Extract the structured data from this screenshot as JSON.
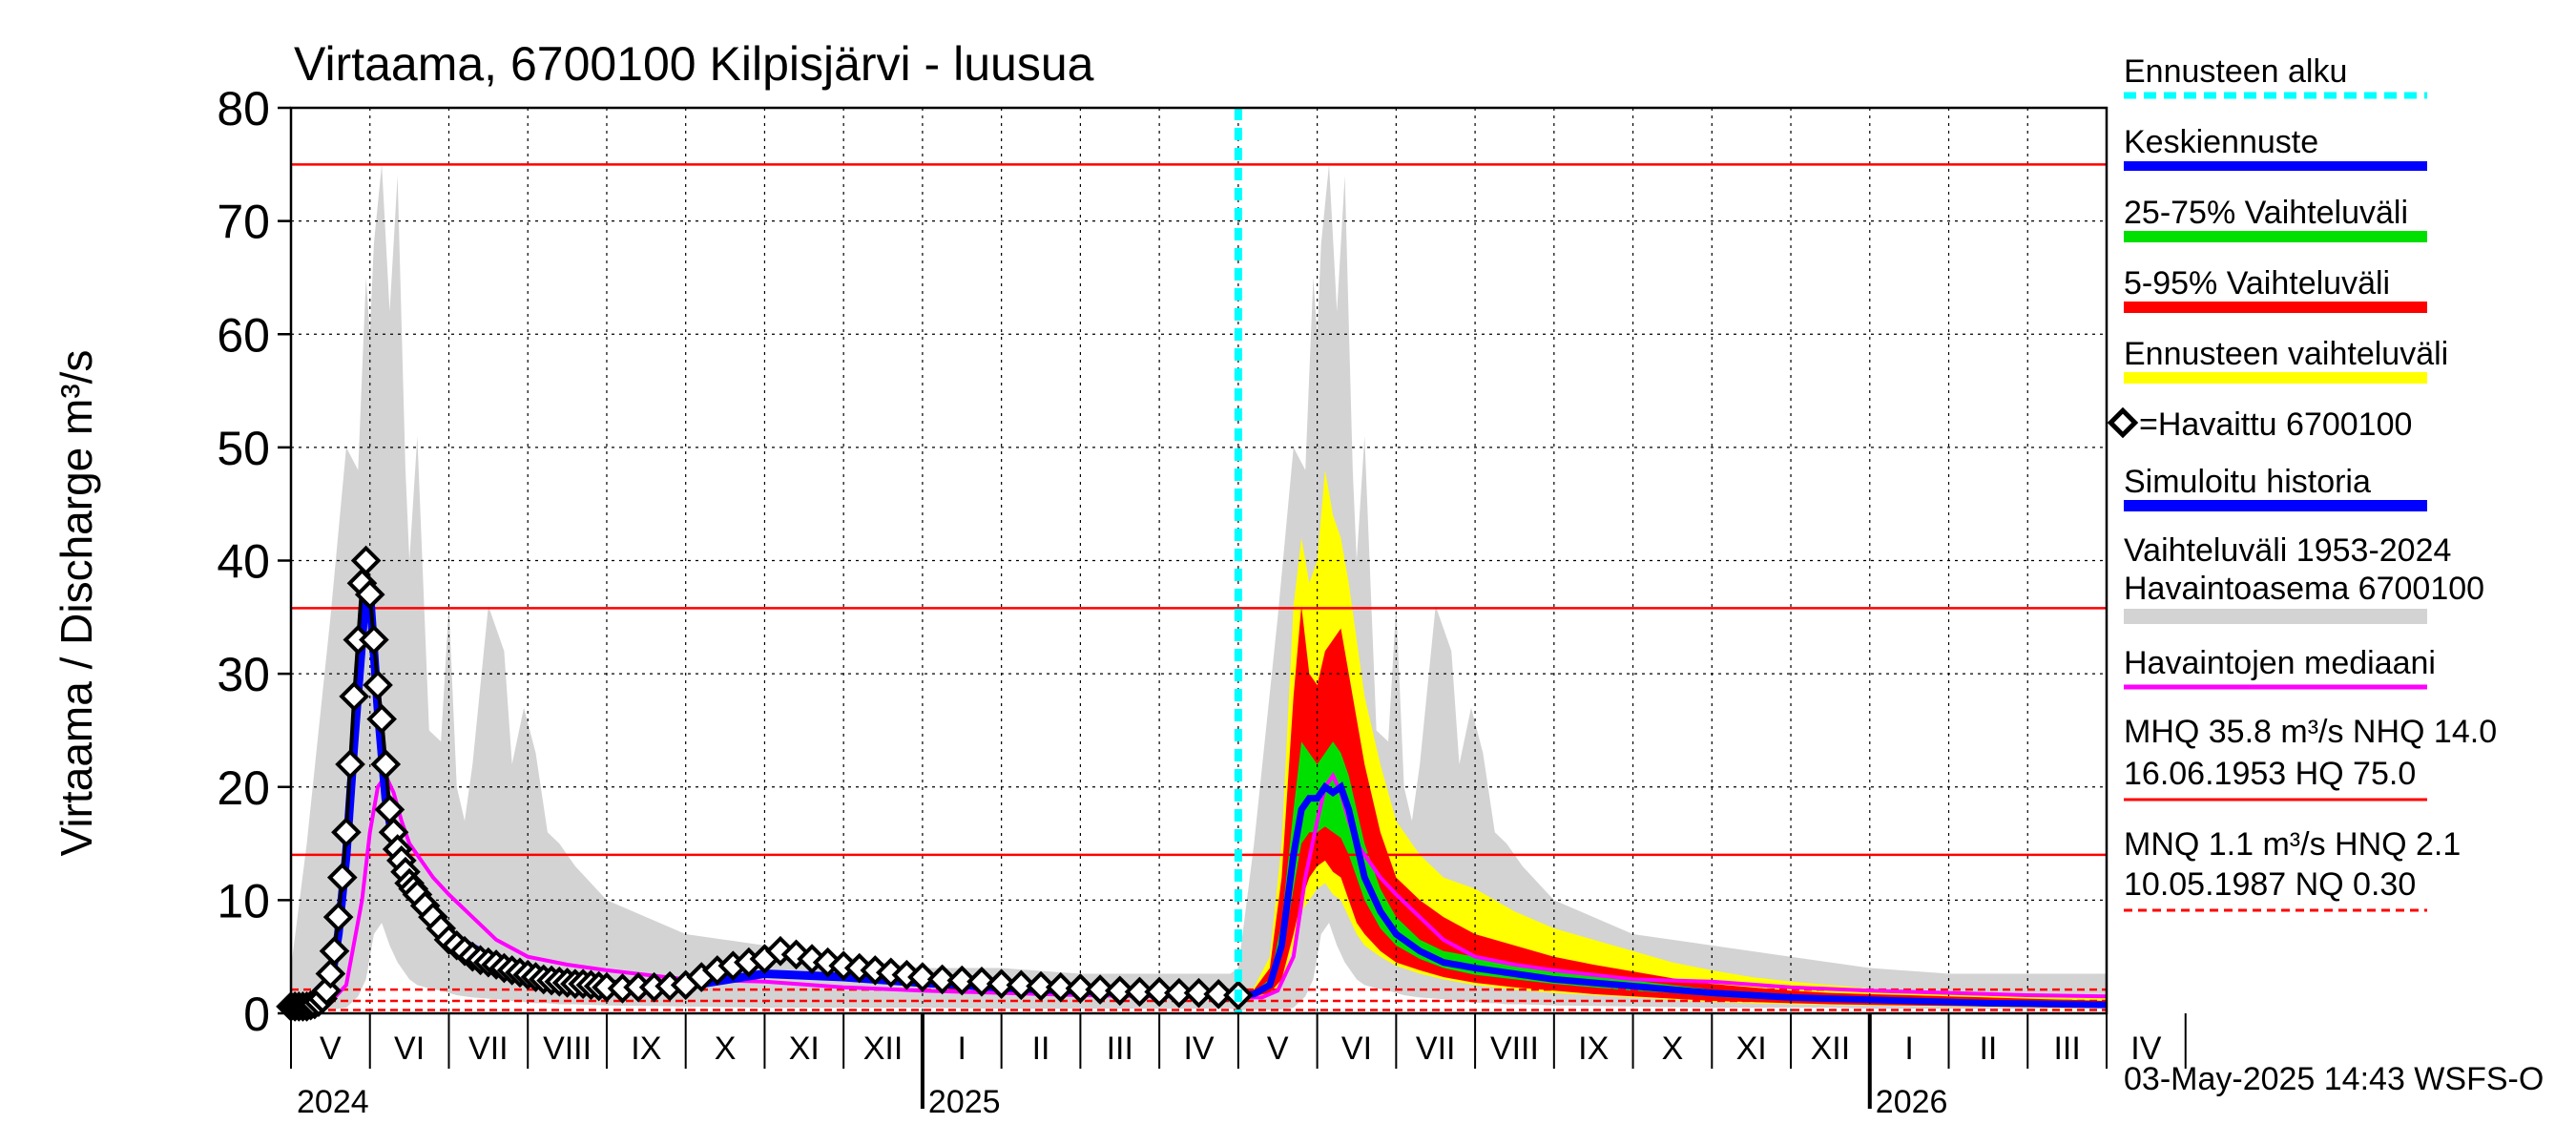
{
  "chart_data": {
    "type": "line",
    "title": "Virtaama, 6700100 Kilpisjärvi - luusua",
    "ylabel": "Virtaama / Discharge     m³/s",
    "ylim": [
      0,
      80
    ],
    "yticks": [
      "0",
      "10",
      "20",
      "30",
      "40",
      "50",
      "60",
      "70",
      "80"
    ],
    "xlim": [
      0,
      23
    ],
    "months": [
      "V",
      "VI",
      "VII",
      "VIII",
      "IX",
      "X",
      "XI",
      "XII",
      "I",
      "II",
      "III",
      "IV",
      "V",
      "VI",
      "VII",
      "VIII",
      "IX",
      "X",
      "XI",
      "XII",
      "I",
      "II",
      "III",
      "IV"
    ],
    "years": [
      {
        "label": "2024",
        "x": 0
      },
      {
        "label": "2025",
        "x": 8
      },
      {
        "label": "2026",
        "x": 20
      }
    ],
    "year_boundaries": [
      8,
      20
    ],
    "forecast_start": 12,
    "timestamp": "03-May-2025 14:43 WSFS-O",
    "reference_lines": [
      {
        "name": "HQ",
        "value": 75.0,
        "style": "solid"
      },
      {
        "name": "MHQ",
        "value": 35.8,
        "style": "solid"
      },
      {
        "name": "NHQ",
        "value": 14.0,
        "style": "solid"
      },
      {
        "name": "HNQ",
        "value": 2.1,
        "style": "dashed"
      },
      {
        "name": "MNQ",
        "value": 1.1,
        "style": "dashed"
      },
      {
        "name": "NQ",
        "value": 0.3,
        "style": "dashed"
      }
    ],
    "history_range": {
      "x": [
        0,
        0.2,
        0.5,
        0.7,
        0.85,
        0.95,
        1.0,
        1.05,
        1.15,
        1.25,
        1.35,
        1.45,
        1.5,
        1.6,
        1.75,
        1.9,
        2.0,
        2.1,
        2.2,
        2.3,
        2.5,
        2.7,
        2.8,
        2.95,
        3.1,
        3.25,
        3.4,
        3.6,
        4.0,
        5.0,
        6.0,
        7.0,
        8.0,
        9.0,
        10.0,
        11.0,
        11.9,
        12.0,
        12.2,
        12.5,
        12.7,
        12.85,
        12.95,
        13.0,
        13.05,
        13.15,
        13.25,
        13.35,
        13.45,
        13.5,
        13.6,
        13.75,
        13.9,
        14.0,
        14.1,
        14.2,
        14.3,
        14.5,
        14.7,
        14.8,
        14.95,
        15.1,
        15.25,
        15.4,
        15.6,
        16.0,
        17.0,
        18.0,
        19.0,
        19.5,
        20.0,
        21.0,
        22.0,
        23.0
      ],
      "max": [
        4,
        15,
        35,
        50,
        48,
        65,
        60,
        68,
        75,
        62,
        74,
        48,
        40,
        51,
        25,
        24,
        36,
        20,
        17,
        22,
        36,
        32,
        22,
        27,
        23,
        16,
        15,
        13,
        10,
        7,
        6,
        5,
        4,
        4,
        3.5,
        3.5,
        3.5,
        4,
        15,
        35,
        50,
        48,
        65,
        60,
        68,
        75,
        62,
        74,
        48,
        40,
        51,
        25,
        24,
        36,
        20,
        17,
        22,
        36,
        32,
        22,
        27,
        23,
        16,
        15,
        13,
        10,
        7,
        6,
        5,
        4.5,
        4,
        3.5,
        3.5,
        3.5
      ],
      "min": [
        0.3,
        0.3,
        0.3,
        0.5,
        1.5,
        3,
        5,
        7,
        8,
        6,
        4.5,
        3.5,
        3,
        2.5,
        2.2,
        2,
        1.8,
        1.6,
        1.5,
        1.4,
        1.3,
        1.2,
        1.1,
        1.0,
        0.9,
        0.9,
        0.8,
        0.8,
        0.7,
        0.6,
        0.5,
        0.5,
        0.5,
        0.4,
        0.4,
        0.4,
        0.4,
        0.3,
        0.3,
        0.3,
        0.5,
        1.5,
        3,
        5,
        7,
        8,
        6,
        4.5,
        3.5,
        3,
        2.5,
        2.2,
        2,
        1.8,
        1.6,
        1.5,
        1.4,
        1.3,
        1.2,
        1.1,
        1.0,
        0.9,
        0.9,
        0.8,
        0.8,
        0.7,
        0.6,
        0.5,
        0.5,
        0.5,
        0.4,
        0.4,
        0.4,
        0.4
      ]
    },
    "median": {
      "x": [
        0,
        0.3,
        0.5,
        0.7,
        0.9,
        1.0,
        1.1,
        1.2,
        1.3,
        1.4,
        1.5,
        1.6,
        1.8,
        2.0,
        2.3,
        2.6,
        3.0,
        3.5,
        4.0,
        5.0,
        6.0,
        7.0,
        8.0,
        9.0,
        10.0,
        11.0,
        12.0,
        12.3,
        12.5,
        12.7,
        12.85,
        13.0,
        13.1,
        13.2,
        13.3,
        13.4,
        13.5,
        13.6,
        13.8,
        14.0,
        14.3,
        14.6,
        15.0,
        15.5,
        16.0,
        17.0,
        18.0,
        19.0,
        20.0,
        21.0,
        22.0,
        23.0
      ],
      "y": [
        0.8,
        0.8,
        1.0,
        2.5,
        10,
        16,
        20,
        21,
        19.5,
        17,
        15,
        14,
        12,
        10.5,
        8.5,
        6.5,
        5,
        4.3,
        3.8,
        3.0,
        2.8,
        2.3,
        2.0,
        1.8,
        1.6,
        1.5,
        1.4,
        1.4,
        2,
        5,
        12,
        17,
        20,
        21,
        19.5,
        17,
        15,
        14,
        12,
        10.5,
        8.5,
        6.5,
        5,
        4.3,
        3.8,
        3.0,
        2.8,
        2.3,
        2.0,
        1.8,
        1.6,
        1.5
      ]
    },
    "observed": {
      "x": [
        0.0,
        0.05,
        0.1,
        0.15,
        0.2,
        0.25,
        0.3,
        0.35,
        0.4,
        0.45,
        0.5,
        0.55,
        0.6,
        0.65,
        0.7,
        0.75,
        0.8,
        0.85,
        0.9,
        0.95,
        1.0,
        1.05,
        1.1,
        1.15,
        1.2,
        1.25,
        1.3,
        1.35,
        1.4,
        1.45,
        1.5,
        1.55,
        1.6,
        1.7,
        1.8,
        1.9,
        2.0,
        2.1,
        2.2,
        2.3,
        2.4,
        2.5,
        2.6,
        2.7,
        2.8,
        2.9,
        3.0,
        3.1,
        3.2,
        3.3,
        3.4,
        3.5,
        3.6,
        3.7,
        3.8,
        3.9,
        4.0,
        4.2,
        4.4,
        4.6,
        4.8,
        5.0,
        5.2,
        5.4,
        5.6,
        5.8,
        6.0,
        6.2,
        6.4,
        6.6,
        6.8,
        7.0,
        7.2,
        7.4,
        7.6,
        7.8,
        8.0,
        8.25,
        8.5,
        8.75,
        9.0,
        9.25,
        9.5,
        9.75,
        10.0,
        10.25,
        10.5,
        10.75,
        11.0,
        11.25,
        11.5,
        11.75,
        12.0
      ],
      "y": [
        0.6,
        0.6,
        0.6,
        0.6,
        0.6,
        0.7,
        0.8,
        1.0,
        1.3,
        2.0,
        3.5,
        5.5,
        8.5,
        12,
        16,
        22,
        28,
        33,
        38,
        40,
        37,
        33,
        29,
        26,
        22,
        18,
        16,
        14.5,
        13.5,
        12.5,
        11.5,
        11,
        10.5,
        9.5,
        8.5,
        7.5,
        6.5,
        6.0,
        5.5,
        5.0,
        4.7,
        4.5,
        4.3,
        4.0,
        3.8,
        3.6,
        3.4,
        3.2,
        3.0,
        2.9,
        2.8,
        2.7,
        2.6,
        2.6,
        2.5,
        2.4,
        2.3,
        2.2,
        2.3,
        2.3,
        2.4,
        2.5,
        3.2,
        3.8,
        4.2,
        4.5,
        4.8,
        5.5,
        5.2,
        4.8,
        4.5,
        4.2,
        4.0,
        3.8,
        3.6,
        3.4,
        3.2,
        3.0,
        2.9,
        2.8,
        2.6,
        2.5,
        2.4,
        2.3,
        2.2,
        2.1,
        2.0,
        1.9,
        1.9,
        1.8,
        1.8,
        1.7,
        1.6
      ]
    },
    "simulated_history": {
      "x": [
        0,
        0.3,
        0.5,
        0.6,
        0.7,
        0.8,
        0.9,
        0.95,
        1.0,
        1.1,
        1.2,
        1.3,
        1.5,
        1.7,
        2.0,
        2.5,
        3.0,
        3.5,
        4.0,
        5.0,
        6.0,
        7.0,
        8.0,
        9.0,
        10.0,
        11.0,
        12.0
      ],
      "y": [
        0.6,
        0.6,
        2.5,
        7,
        14,
        24,
        33,
        38,
        37,
        27,
        19,
        15,
        12,
        10,
        7,
        5,
        3.8,
        3.0,
        2.6,
        2.4,
        3.5,
        3.2,
        2.7,
        2.3,
        2.0,
        1.8,
        1.6
      ]
    },
    "forecast": {
      "x": [
        12.0,
        12.2,
        12.4,
        12.55,
        12.7,
        12.8,
        12.9,
        13.0,
        13.1,
        13.2,
        13.3,
        13.4,
        13.5,
        13.6,
        13.8,
        14.0,
        14.3,
        14.6,
        15.0,
        15.5,
        16.0,
        16.5,
        17.0,
        17.5,
        18.0,
        18.5,
        19.0,
        19.5,
        20.0,
        20.5,
        21.0,
        21.5,
        22.0,
        22.5,
        23.0
      ],
      "mean": [
        1.6,
        1.7,
        2.5,
        6,
        14,
        18,
        19,
        19,
        20,
        19.5,
        20,
        18,
        15,
        12,
        9,
        7,
        5.5,
        4.5,
        4,
        3.5,
        3,
        2.7,
        2.4,
        2.1,
        1.8,
        1.6,
        1.4,
        1.3,
        1.2,
        1.1,
        1.0,
        0.9,
        0.85,
        0.8,
        0.75
      ],
      "p25": [
        1.5,
        1.6,
        2.2,
        5,
        11,
        15,
        16,
        16,
        16.5,
        16,
        15.5,
        14,
        12,
        10,
        7.5,
        6,
        4.8,
        4.0,
        3.4,
        3.0,
        2.6,
        2.3,
        2.0,
        1.8,
        1.5,
        1.3,
        1.2,
        1.1,
        1.0,
        0.9,
        0.85,
        0.8,
        0.75,
        0.7,
        0.65
      ],
      "p75": [
        1.7,
        1.9,
        3,
        8,
        18,
        24,
        23,
        22,
        23,
        24,
        23,
        21,
        18,
        15,
        11,
        8.5,
        6.5,
        5.5,
        5,
        4.3,
        3.8,
        3.3,
        2.9,
        2.5,
        2.1,
        1.9,
        1.7,
        1.5,
        1.4,
        1.3,
        1.2,
        1.1,
        1.0,
        0.95,
        0.9
      ],
      "p5": [
        1.4,
        1.5,
        1.8,
        3,
        7,
        10,
        12,
        13,
        13.5,
        12.5,
        12,
        10,
        8,
        7,
        5.5,
        4.5,
        3.8,
        3.2,
        2.7,
        2.3,
        2.0,
        1.7,
        1.5,
        1.3,
        1.1,
        1.0,
        0.9,
        0.8,
        0.75,
        0.7,
        0.65,
        0.6,
        0.55,
        0.5,
        0.5
      ],
      "p95": [
        1.8,
        2.1,
        4,
        12,
        28,
        36,
        30,
        29,
        32,
        33,
        34,
        30,
        26,
        22,
        16,
        12,
        10,
        8.5,
        7,
        6,
        5,
        4.3,
        3.7,
        3.1,
        2.6,
        2.3,
        2.0,
        1.8,
        1.7,
        1.6,
        1.5,
        1.4,
        1.3,
        1.2,
        1.1
      ],
      "min": [
        1.3,
        1.4,
        1.7,
        2.5,
        6,
        9,
        10,
        11,
        11.5,
        10.5,
        10,
        8.5,
        7,
        6,
        5,
        4.2,
        3.5,
        3.0,
        2.5,
        2.1,
        1.8,
        1.6,
        1.4,
        1.2,
        1.0,
        0.9,
        0.8,
        0.75,
        0.7,
        0.65,
        0.6,
        0.55,
        0.5,
        0.45,
        0.45
      ],
      "max": [
        1.9,
        2.3,
        5,
        15,
        36,
        42,
        38,
        40,
        48,
        44,
        42,
        38,
        33,
        28,
        22,
        17,
        14,
        12,
        11,
        9,
        7.5,
        6.5,
        5.5,
        4.5,
        3.8,
        3.2,
        2.8,
        2.5,
        2.2,
        2.0,
        1.9,
        1.8,
        1.7,
        1.6,
        1.5
      ]
    }
  },
  "legend": {
    "forecast_start": "Ennusteen alku",
    "mean_forecast": "Keskiennuste",
    "range_25_75": "25-75% Vaihteluväli",
    "range_5_95": "5-95% Vaihteluväli",
    "forecast_range": "Ennusteen vaihteluväli",
    "observed": "=Havaittu 6700100",
    "simulated": "Simuloitu historia",
    "history_1": "Vaihteluväli 1953-2024",
    "history_2": " Havaintoasema 6700100",
    "median": "Havaintojen mediaani",
    "hq_1": "MHQ 35.8 m³/s NHQ 14.0",
    "hq_2": "16.06.1953 HQ 75.0",
    "nq_1": "MNQ  1.1 m³/s HNQ  2.1",
    "nq_2": "10.05.1987 NQ 0.30"
  },
  "colors": {
    "history": "#d3d3d3",
    "forecast_range": "#ffff00",
    "range_5_95": "#ff0000",
    "range_25_75": "#00e000",
    "mean": "#0000ff",
    "median": "#ff00ff",
    "reference": "#ff0000",
    "forecast_start": "#00ffff",
    "simulated": "#0000ff"
  }
}
